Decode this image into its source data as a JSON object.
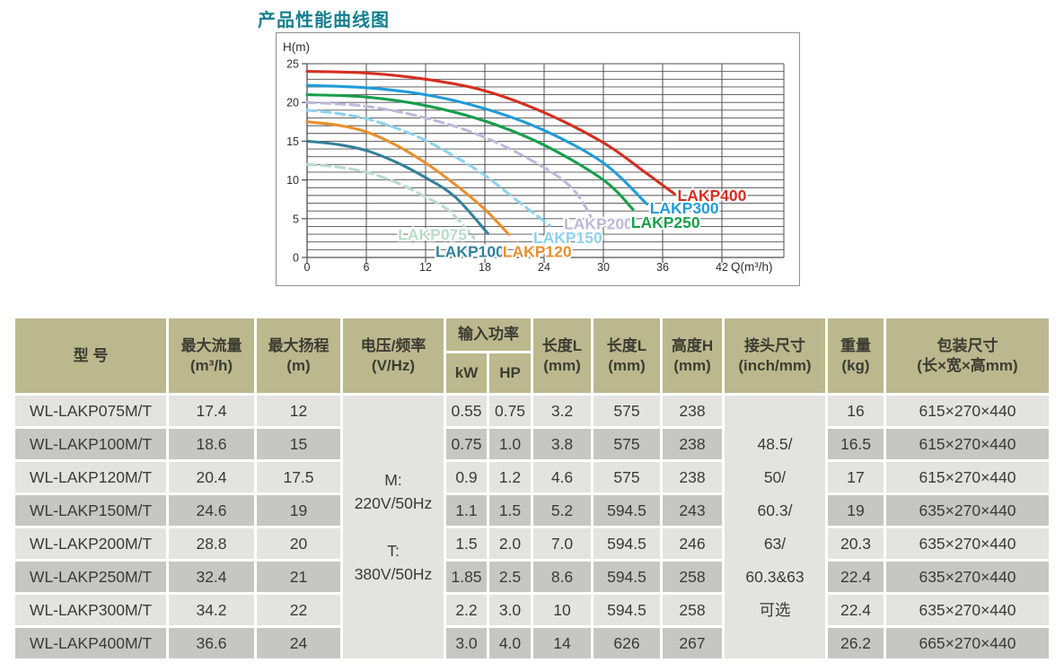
{
  "page": {
    "title": "产品性能曲线图"
  },
  "colors": {
    "title": "#15808f",
    "header_bg": "#bcb88e",
    "row_light": "#e3e3e2",
    "row_dark": "#c6c6c5",
    "grid_line": "#4f4f4f",
    "text": "#3a3a3a"
  },
  "chart_data": {
    "type": "line",
    "title": "产品性能曲线图",
    "xlabel": "Q(m³/h)",
    "ylabel": "H(m)",
    "xlim": [
      0,
      48.5
    ],
    "ylim": [
      0,
      25
    ],
    "x_ticks": [
      0,
      6,
      12,
      18,
      24,
      30,
      36,
      42
    ],
    "y_ticks": [
      0,
      5,
      10,
      15,
      20,
      25
    ],
    "grid": {
      "horizontal_step": 1,
      "vertical_at": "x_ticks",
      "closed_right_edge": true
    },
    "legend_position": "on-curve-labels",
    "series": [
      {
        "name": "LAKP075",
        "color": "#b9dcc8",
        "dashed": true,
        "points": [
          [
            0,
            12
          ],
          [
            3,
            11.7
          ],
          [
            6,
            11
          ],
          [
            9,
            9.7
          ],
          [
            12,
            7.8
          ],
          [
            14.5,
            5.9
          ],
          [
            16.9,
            2.5
          ]
        ],
        "label_pos": [
          9.2,
          2.95
        ]
      },
      {
        "name": "LAKP100",
        "color": "#34809b",
        "dashed": false,
        "points": [
          [
            0,
            15
          ],
          [
            3,
            14.6
          ],
          [
            6,
            13.8
          ],
          [
            9,
            12.3
          ],
          [
            12,
            10.3
          ],
          [
            15,
            7.8
          ],
          [
            18.3,
            3.1
          ]
        ],
        "label_pos": [
          13.0,
          0.75
        ]
      },
      {
        "name": "LAKP120",
        "color": "#e88f2c",
        "dashed": false,
        "points": [
          [
            0,
            17.5
          ],
          [
            3,
            17.1
          ],
          [
            6,
            16.2
          ],
          [
            9,
            14.5
          ],
          [
            12,
            12.2
          ],
          [
            15,
            9.4
          ],
          [
            18,
            6.2
          ],
          [
            20.4,
            3.0
          ]
        ],
        "label_pos": [
          19.8,
          0.75
        ]
      },
      {
        "name": "LAKP150",
        "color": "#8ed2ee",
        "dashed": true,
        "points": [
          [
            0,
            19
          ],
          [
            3,
            18.6
          ],
          [
            6,
            17.9
          ],
          [
            9,
            16.7
          ],
          [
            12,
            15.1
          ],
          [
            15,
            13
          ],
          [
            18,
            10.6
          ],
          [
            21,
            7.6
          ],
          [
            24.6,
            4.1
          ]
        ],
        "label_pos": [
          22.9,
          2.55
        ]
      },
      {
        "name": "LAKP200",
        "color": "#bdb9da",
        "dashed": true,
        "points": [
          [
            0,
            20
          ],
          [
            6,
            19.5
          ],
          [
            12,
            18
          ],
          [
            18,
            15.5
          ],
          [
            24,
            11.6
          ],
          [
            27,
            8.7
          ],
          [
            28.9,
            4.9
          ]
        ],
        "label_pos": [
          26.0,
          4.35
        ]
      },
      {
        "name": "LAKP250",
        "color": "#189e4b",
        "dashed": false,
        "points": [
          [
            0,
            21
          ],
          [
            6,
            20.7
          ],
          [
            12,
            19.6
          ],
          [
            18,
            17.6
          ],
          [
            24,
            14.5
          ],
          [
            30,
            10
          ],
          [
            33,
            6.2
          ]
        ],
        "label_pos": [
          32.8,
          4.5
        ]
      },
      {
        "name": "LAKP300",
        "color": "#219cd8",
        "dashed": false,
        "points": [
          [
            0,
            22.2
          ],
          [
            6,
            21.9
          ],
          [
            12,
            21
          ],
          [
            18,
            19.2
          ],
          [
            24,
            16.4
          ],
          [
            30,
            12.2
          ],
          [
            34.4,
            6.9
          ]
        ],
        "label_pos": [
          34.7,
          6.35
        ]
      },
      {
        "name": "LAKP400",
        "color": "#d52f21",
        "dashed": false,
        "points": [
          [
            0,
            24
          ],
          [
            6,
            23.8
          ],
          [
            12,
            23
          ],
          [
            18,
            21.5
          ],
          [
            24,
            18.7
          ],
          [
            30,
            14.8
          ],
          [
            34,
            11.2
          ],
          [
            37.2,
            8.2
          ]
        ],
        "label_pos": [
          37.5,
          8.0
        ]
      }
    ]
  },
  "table": {
    "headers": {
      "model": "型 号",
      "max_flow": "最大流量\n(m³/h)",
      "max_head": "最大扬程\n(m)",
      "voltage": "电压/频率\n(V/Hz)",
      "input_power": "输入功率",
      "kw": "kW",
      "hp": "HP",
      "length_a": "长度L\n(mm)",
      "length_b": "长度L\n(mm)",
      "height": "高度H\n(mm)",
      "connector": "接头尺寸\n(inch/mm)",
      "weight": "重量\n(kg)",
      "packing": "包装尺寸\n(长×宽×高mm)"
    },
    "voltage_lines": [
      "M:",
      "220V/50Hz",
      "",
      "T:",
      "380V/50Hz"
    ],
    "connector_lines": [
      "48.5/",
      "50/",
      "60.3/",
      "63/",
      "60.3&63",
      "可选"
    ],
    "rows": [
      {
        "model": "WL-LAKP075M/T",
        "max_flow": "17.4",
        "max_head": "12",
        "kw": "0.55",
        "hp": "0.75",
        "length_a": "3.2",
        "length_b": "575",
        "height": "238",
        "weight": "16",
        "packing": "615×270×440"
      },
      {
        "model": "WL-LAKP100M/T",
        "max_flow": "18.6",
        "max_head": "15",
        "kw": "0.75",
        "hp": "1.0",
        "length_a": "3.8",
        "length_b": "575",
        "height": "238",
        "weight": "16.5",
        "packing": "615×270×440"
      },
      {
        "model": "WL-LAKP120M/T",
        "max_flow": "20.4",
        "max_head": "17.5",
        "kw": "0.9",
        "hp": "1.2",
        "length_a": "4.6",
        "length_b": "575",
        "height": "238",
        "weight": "17",
        "packing": "615×270×440"
      },
      {
        "model": "WL-LAKP150M/T",
        "max_flow": "24.6",
        "max_head": "19",
        "kw": "1.1",
        "hp": "1.5",
        "length_a": "5.2",
        "length_b": "594.5",
        "height": "243",
        "weight": "19",
        "packing": "635×270×440"
      },
      {
        "model": "WL-LAKP200M/T",
        "max_flow": "28.8",
        "max_head": "20",
        "kw": "1.5",
        "hp": "2.0",
        "length_a": "7.0",
        "length_b": "594.5",
        "height": "246",
        "weight": "20.3",
        "packing": "635×270×440"
      },
      {
        "model": "WL-LAKP250M/T",
        "max_flow": "32.4",
        "max_head": "21",
        "kw": "1.85",
        "hp": "2.5",
        "length_a": "8.6",
        "length_b": "594.5",
        "height": "258",
        "weight": "22.4",
        "packing": "635×270×440"
      },
      {
        "model": "WL-LAKP300M/T",
        "max_flow": "34.2",
        "max_head": "22",
        "kw": "2.2",
        "hp": "3.0",
        "length_a": "10",
        "length_b": "594.5",
        "height": "258",
        "weight": "22.4",
        "packing": "635×270×440"
      },
      {
        "model": "WL-LAKP400M/T",
        "max_flow": "36.6",
        "max_head": "24",
        "kw": "3.0",
        "hp": "4.0",
        "length_a": "14",
        "length_b": "626",
        "height": "267",
        "weight": "26.2",
        "packing": "665×270×440"
      }
    ]
  }
}
